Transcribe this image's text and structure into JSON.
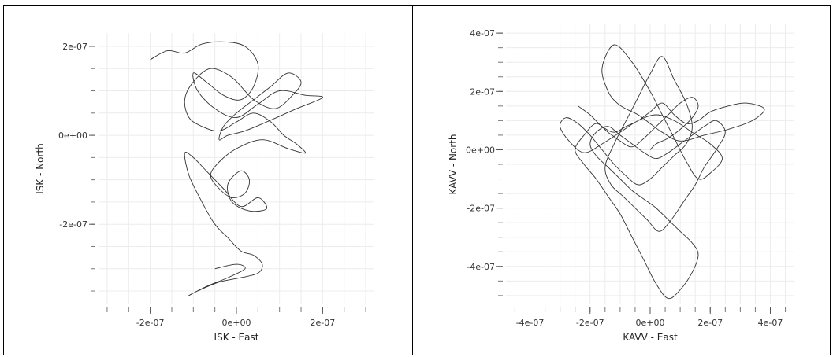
{
  "chart_data": [
    {
      "type": "line",
      "xlabel": "ISK - East",
      "ylabel": "ISK - North",
      "xlim": [
        -3.2e-07,
        3.2e-07
      ],
      "ylim": [
        -3.8e-07,
        2.3e-07
      ],
      "xticks": [
        -2e-07,
        0,
        2e-07
      ],
      "xtick_labels": [
        "-2e-07",
        "0e+00",
        "2e-07"
      ],
      "yticks": [
        -2e-07,
        0,
        2e-07
      ],
      "ytick_labels": [
        "-2e-07",
        "0e+00",
        "2e-07"
      ],
      "grid": true,
      "series": [
        {
          "x": [
            -2e-07,
            -1.6e-07,
            -1.2e-07,
            -8e-08,
            -3e-08,
            2e-08,
            5e-08,
            4e-08,
            1e-08,
            -3e-08,
            -7e-08,
            -1e-07,
            -9e-08,
            -5e-08,
            0.0,
            5e-08,
            1e-07,
            1.6e-07,
            2e-07,
            1.4e-07,
            7e-08,
            2e-08,
            -2e-08,
            -4e-08,
            -3e-08,
            0.0,
            4e-08,
            8e-08,
            1.2e-07,
            1.5e-07,
            1.3e-07,
            9e-08,
            4e-08,
            -1e-08,
            -6e-08,
            -1e-07,
            -1.2e-07,
            -1.1e-07,
            -8e-08,
            -4e-08,
            0.0,
            4e-08,
            8e-08,
            1.1e-07,
            1.4e-07,
            1.6e-07,
            1.2e-07,
            6e-08,
            0.0,
            -4e-08,
            -6e-08,
            -4e-08,
            -1e-08,
            2e-08,
            3e-08,
            1e-08,
            -2e-08,
            -1e-08,
            3e-08,
            7e-08,
            5e-08,
            1e-08,
            -3e-08,
            -7e-08,
            -1e-07,
            -1.2e-07,
            -1.1e-07,
            -8e-08,
            -5e-08,
            -2e-08,
            1e-08,
            4e-08,
            6e-08,
            5e-08,
            1e-08,
            -4e-08,
            -9e-08,
            -1.1e-07,
            -7e-08,
            -2e-08,
            2e-08,
            0.0,
            -5e-08
          ],
          "y": [
            1.7e-07,
            1.9e-07,
            1.85e-07,
            2.05e-07,
            2.1e-07,
            2e-07,
            1.6e-07,
            1.1e-07,
            8e-08,
            9e-08,
            1.2e-07,
            1.4e-07,
            1e-07,
            6e-08,
            4e-08,
            7e-08,
            1e-07,
            9e-08,
            8.5e-08,
            6e-08,
            3e-08,
            1e-08,
            0.0,
            -1e-08,
            2e-08,
            5e-08,
            8e-08,
            1.1e-07,
            1.4e-07,
            1.2e-07,
            9e-08,
            6e-08,
            8e-08,
            1.3e-07,
            1.5e-07,
            1.2e-07,
            8e-08,
            4e-08,
            2e-08,
            1e-08,
            3e-08,
            5e-08,
            3e-08,
            0.0,
            -2e-08,
            -4e-08,
            -3e-08,
            -1e-08,
            -3e-08,
            -6e-08,
            -9e-08,
            -1.2e-07,
            -1.4e-07,
            -1.3e-07,
            -1e-07,
            -8e-08,
            -1.1e-07,
            -1.5e-07,
            -1.7e-07,
            -1.65e-07,
            -1.4e-07,
            -1.6e-07,
            -1.2e-07,
            -8e-08,
            -5e-08,
            -4e-08,
            -9e-08,
            -1.5e-07,
            -2e-07,
            -2.3e-07,
            -2.6e-07,
            -2.7e-07,
            -2.9e-07,
            -3.1e-07,
            -3.2e-07,
            -3.3e-07,
            -3.5e-07,
            -3.6e-07,
            -3.4e-07,
            -3.2e-07,
            -3e-07,
            -2.9e-07,
            -3e-07
          ]
        }
      ]
    },
    {
      "type": "line",
      "xlabel": "KAVV - East",
      "ylabel": "KAVV - North",
      "xlim": [
        -4.8e-07,
        4.8e-07
      ],
      "ylim": [
        -5.3e-07,
        4.3e-07
      ],
      "xticks": [
        -4e-07,
        -2e-07,
        0,
        2e-07,
        4e-07
      ],
      "xtick_labels": [
        "-4e-07",
        "-2e-07",
        "0e+00",
        "2e-07",
        "4e-07"
      ],
      "yticks": [
        -4e-07,
        -2e-07,
        0,
        2e-07,
        4e-07
      ],
      "ytick_labels": [
        "-4e-07",
        "-2e-07",
        "0e+00",
        "2e-07",
        "4e-07"
      ],
      "grid": true,
      "series": [
        {
          "x": [
            -2.4e-07,
            -2e-07,
            -1.6e-07,
            -1.2e-07,
            -8e-08,
            -4e-08,
            0.0,
            4e-08,
            8e-08,
            1.2e-07,
            1.6e-07,
            2e-07,
            2.6e-07,
            3.2e-07,
            3.8e-07,
            3.4e-07,
            2.6e-07,
            1.8e-07,
            1e-07,
            4e-08,
            0.0,
            -4e-08,
            -8e-08,
            -1.1e-07,
            -1.4e-07,
            -1.6e-07,
            -1.2e-07,
            -6e-08,
            0.0,
            4e-08,
            8e-08,
            1.2e-07,
            1.6e-07,
            2e-07,
            2.4e-07,
            2e-07,
            1.4e-07,
            8e-08,
            2e-08,
            -4e-08,
            -1e-07,
            -1.6e-07,
            -2.2e-07,
            -2.7e-07,
            -3e-07,
            -2.8e-07,
            -2.4e-07,
            -2e-07,
            -1.6e-07,
            -1.2e-07,
            -8e-08,
            -4e-08,
            0.0,
            4e-08,
            8e-08,
            1.2e-07,
            1.4e-07,
            1.2e-07,
            8e-08,
            4e-08,
            0.0,
            -4e-08,
            -8e-08,
            -1.2e-07,
            -1.5e-07,
            -1.3e-07,
            -9e-08,
            -5e-08,
            -1e-08,
            3e-08,
            7e-08,
            1.1e-07,
            1.5e-07,
            1.8e-07,
            2.2e-07,
            2.5e-07,
            2.2e-07,
            1.8e-07,
            1.4e-07,
            1e-07,
            6e-08,
            2e-08,
            -2e-08,
            -6e-08,
            -1e-07,
            -1.4e-07,
            -1.8e-07,
            -2e-07,
            -1.8e-07,
            -1.4e-07,
            -1e-07,
            -6e-08,
            -2e-08,
            2e-08,
            6e-08,
            1e-07,
            1.4e-07,
            1.6e-07,
            1.4e-07,
            1e-07,
            6e-08,
            2e-08,
            -2e-08,
            -6e-08,
            -1e-07,
            -1.4e-07,
            -1.8e-07,
            -2.2e-07,
            -2.5e-07,
            -2.2e-07,
            -1.8e-07,
            -1.4e-07,
            -1e-07,
            -6e-08,
            -2e-08,
            2e-08,
            6e-08,
            1e-07,
            1.4e-07,
            1.6e-07,
            1.4e-07,
            1e-07,
            6e-08,
            2e-08,
            0.0
          ],
          "y": [
            1.5e-07,
            1.2e-07,
            8e-08,
            6e-08,
            8e-08,
            1e-07,
            1.3e-07,
            1.6e-07,
            1.2e-07,
            9e-08,
            1e-07,
            1.3e-07,
            1.5e-07,
            1.6e-07,
            1.4e-07,
            1e-07,
            7e-08,
            5e-08,
            3e-08,
            6e-08,
            9e-08,
            1.2e-07,
            1.4e-07,
            1.6e-07,
            2e-07,
            2.8e-07,
            3.6e-07,
            3e-07,
            2e-07,
            1.2e-07,
            4e-08,
            -4e-08,
            -1e-07,
            -8e-08,
            -3e-08,
            2e-08,
            6e-08,
            1e-07,
            1.2e-07,
            1e-07,
            6e-08,
            2e-08,
            -1e-08,
            3e-08,
            8e-08,
            1.1e-07,
            9e-08,
            5e-08,
            0.0,
            -5e-08,
            -9e-08,
            -1.2e-07,
            -1e-07,
            -6e-08,
            -2e-08,
            2e-08,
            8e-08,
            1.6e-07,
            2.4e-07,
            3.2e-07,
            2.6e-07,
            1.8e-07,
            1e-07,
            2e-08,
            -6e-08,
            -1.2e-07,
            -1.6e-07,
            -2e-07,
            -2.4e-07,
            -2.8e-07,
            -2.4e-07,
            -1.8e-07,
            -1.2e-07,
            -6e-08,
            0.0,
            6e-08,
            1e-07,
            8e-08,
            5e-08,
            2e-08,
            -1e-08,
            -3e-08,
            -1e-08,
            2e-08,
            5e-08,
            8e-08,
            6e-08,
            2e-08,
            -2e-08,
            -6e-08,
            -1e-07,
            -1.4e-07,
            -1.7e-07,
            -2e-07,
            -2.4e-07,
            -2.8e-07,
            -3.2e-07,
            -3.6e-07,
            -4.2e-07,
            -4.8e-07,
            -5.1e-07,
            -4.6e-07,
            -3.8e-07,
            -3e-07,
            -2.2e-07,
            -1.6e-07,
            -1e-07,
            -5e-08,
            0.0,
            5e-08,
            9e-08,
            6e-08,
            3e-08,
            1e-08,
            4e-08,
            8e-08,
            1.2e-07,
            1.6e-07,
            1.8e-07,
            1.5e-07,
            1.1e-07,
            7e-08,
            4e-08,
            2e-08,
            0.0
          ]
        }
      ]
    }
  ]
}
